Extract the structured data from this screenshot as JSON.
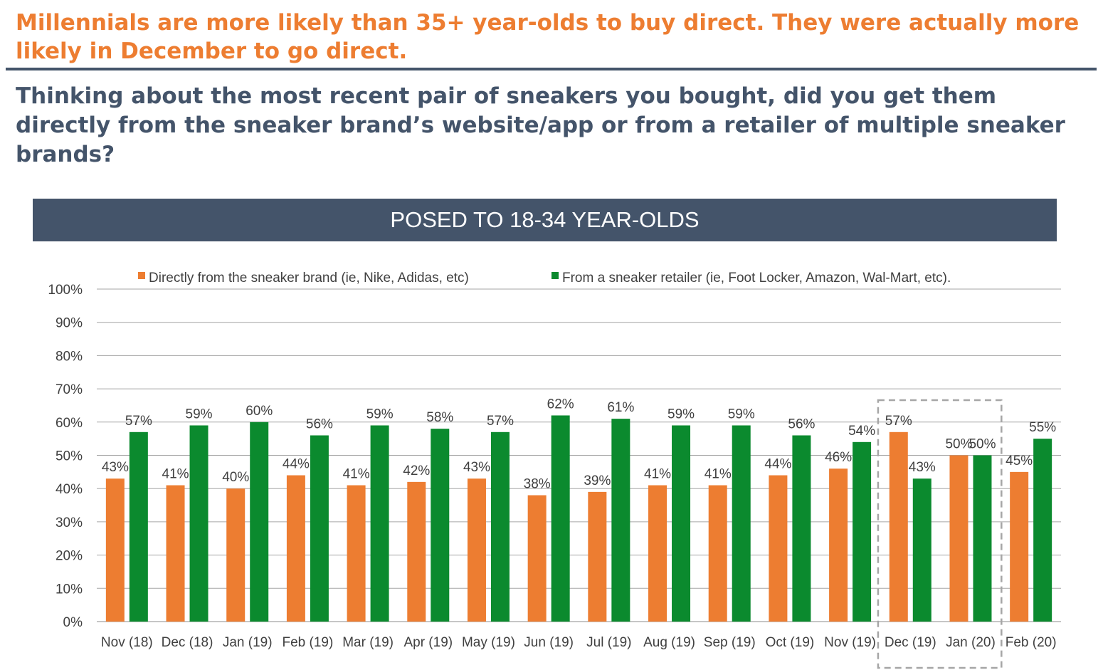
{
  "headline": "Millennials are more likely than 35+ year-olds to buy direct. They were actually more likely in December to go direct.",
  "question": "Thinking about the most recent pair of sneakers you bought, did you get them directly from the sneaker brand’s website/app or from a retailer of multiple sneaker brands?",
  "banner": "POSED TO 18-34 YEAR-OLDS",
  "colors": {
    "orange": "#ED7D31",
    "green": "#0B8A2E",
    "slate": "#44546A"
  },
  "chart_data": {
    "type": "bar",
    "title": "",
    "xlabel": "",
    "ylabel": "",
    "ylim": [
      0,
      100
    ],
    "yticks": [
      "0%",
      "10%",
      "20%",
      "30%",
      "40%",
      "50%",
      "60%",
      "70%",
      "80%",
      "90%",
      "100%"
    ],
    "grid": true,
    "legend_position": "top",
    "categories": [
      "Nov (18)",
      "Dec (18)",
      "Jan (19)",
      "Feb (19)",
      "Mar (19)",
      "Apr (19)",
      "May (19)",
      "Jun (19)",
      "Jul (19)",
      "Aug (19)",
      "Sep (19)",
      "Oct (19)",
      "Nov (19)",
      "Dec (19)",
      "Jan (20)",
      "Feb (20)"
    ],
    "series": [
      {
        "name": "Directly from the sneaker brand (ie, Nike, Adidas, etc)",
        "color": "#ED7D31",
        "values": [
          43,
          41,
          40,
          44,
          41,
          42,
          43,
          38,
          39,
          41,
          41,
          44,
          46,
          57,
          50,
          45
        ]
      },
      {
        "name": "From a sneaker retailer (ie, Foot Locker, Amazon, Wal-Mart, etc).",
        "color": "#0B8A2E",
        "values": [
          57,
          59,
          60,
          56,
          59,
          58,
          57,
          62,
          61,
          59,
          59,
          56,
          54,
          43,
          50,
          55
        ]
      }
    ],
    "highlight": {
      "categories": [
        "Dec (19)",
        "Jan (20)"
      ],
      "style": "dashed-box"
    }
  }
}
